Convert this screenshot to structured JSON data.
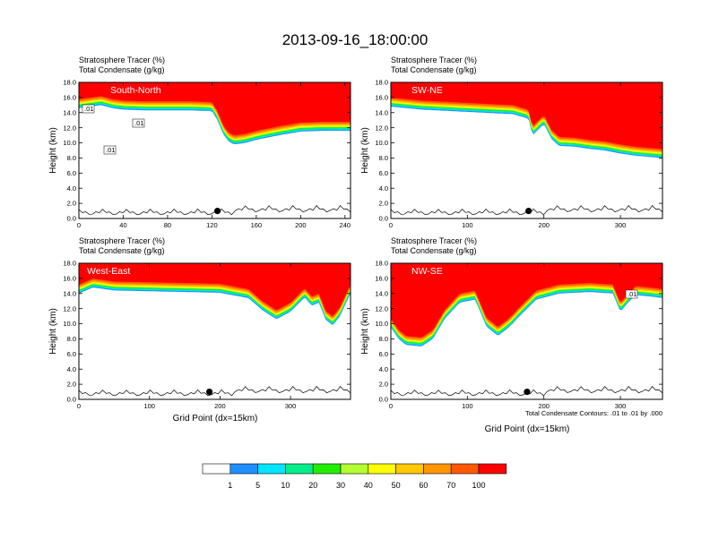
{
  "title": "2013-09-16_18:00:00",
  "subtitle_line1": "Stratosphere Tracer   (%)",
  "subtitle_line2": "Total Condensate   (g/kg)",
  "ylabel": "Height (km)",
  "xlabel": "Grid Point (dx=15km)",
  "contour_note": "Total Condensate Contours: .01 to .01 by .000",
  "colorbar": {
    "labels": [
      "1",
      "5",
      "10",
      "20",
      "30",
      "40",
      "50",
      "60",
      "70",
      "100"
    ],
    "colors": [
      "#ffffff",
      "#1e90ff",
      "#00e5ff",
      "#00ee8a",
      "#22ee00",
      "#b4ff32",
      "#ffff00",
      "#ffc800",
      "#ff9600",
      "#ff5a00",
      "#ff0000"
    ]
  },
  "chart_data": [
    {
      "type": "heatmap",
      "name": "South-North",
      "xlim": [
        0,
        245
      ],
      "ylim": [
        0,
        18
      ],
      "xticks": [
        "0",
        "40",
        "80",
        "120",
        "160",
        "200",
        "240"
      ],
      "yticks": [
        "0.0",
        "2.0",
        "4.0",
        "6.0",
        "8.0",
        "10.0",
        "12.0",
        "14.0",
        "16.0",
        "18.0"
      ],
      "contour_labels": [
        ".01",
        ".01",
        ".01"
      ],
      "tracer_bottom_km": {
        "x": [
          0,
          10,
          20,
          30,
          40,
          60,
          80,
          100,
          120,
          125,
          130,
          135,
          140,
          150,
          160,
          180,
          200,
          220,
          245
        ],
        "y": [
          14.6,
          14.8,
          15.0,
          14.6,
          14.4,
          14.3,
          14.3,
          14.3,
          14.2,
          13.0,
          11.2,
          10.2,
          9.8,
          10.0,
          10.4,
          11.0,
          11.5,
          11.6,
          11.6
        ]
      },
      "terrain_marker": {
        "x": 125,
        "y": 1.0
      }
    },
    {
      "type": "heatmap",
      "name": "SW-NE",
      "xlim": [
        0,
        355
      ],
      "ylim": [
        0,
        18
      ],
      "xticks": [
        "0",
        "100",
        "200",
        "300"
      ],
      "yticks": [
        "0.0",
        "2.0",
        "4.0",
        "6.0",
        "8.0",
        "10.0",
        "12.0",
        "14.0",
        "16.0",
        "18.0"
      ],
      "tracer_bottom_km": {
        "x": [
          0,
          40,
          80,
          120,
          160,
          180,
          185,
          200,
          210,
          220,
          240,
          260,
          280,
          300,
          320,
          355
        ],
        "y": [
          14.8,
          14.4,
          14.2,
          14.0,
          13.8,
          13.2,
          11.0,
          12.5,
          10.5,
          9.6,
          9.5,
          9.2,
          9.0,
          8.6,
          8.3,
          8.0
        ]
      },
      "terrain_marker": {
        "x": 180,
        "y": 1.0
      }
    },
    {
      "type": "heatmap",
      "name": "West-East",
      "xlim": [
        0,
        385
      ],
      "ylim": [
        0,
        18
      ],
      "xticks": [
        "0",
        "100",
        "200",
        "300"
      ],
      "yticks": [
        "0.0",
        "2.0",
        "4.0",
        "6.0",
        "8.0",
        "10.0",
        "12.0",
        "14.0",
        "16.0",
        "18.0"
      ],
      "tracer_bottom_km": {
        "x": [
          0,
          20,
          50,
          100,
          150,
          200,
          240,
          260,
          280,
          300,
          320,
          330,
          340,
          350,
          360,
          370,
          385
        ],
        "y": [
          14.0,
          14.8,
          14.4,
          14.3,
          14.2,
          14.1,
          13.4,
          11.8,
          10.6,
          11.6,
          13.5,
          12.4,
          12.8,
          10.5,
          9.8,
          11.0,
          14.0
        ]
      },
      "terrain_marker": {
        "x": 185,
        "y": 1.0
      }
    },
    {
      "type": "heatmap",
      "name": "NW-SE",
      "xlim": [
        0,
        355
      ],
      "ylim": [
        0,
        18
      ],
      "xticks": [
        "0",
        "100",
        "200",
        "300"
      ],
      "yticks": [
        "0.0",
        "2.0",
        "4.0",
        "6.0",
        "8.0",
        "10.0",
        "12.0",
        "14.0",
        "16.0",
        "18.0"
      ],
      "contour_labels": [
        ".01"
      ],
      "tracer_bottom_km": {
        "x": [
          0,
          10,
          20,
          40,
          55,
          70,
          90,
          110,
          125,
          140,
          155,
          170,
          190,
          220,
          260,
          290,
          300,
          310,
          320,
          340,
          355
        ],
        "y": [
          9.5,
          8.0,
          7.2,
          7.0,
          8.0,
          10.6,
          12.8,
          13.2,
          9.6,
          8.4,
          9.6,
          11.2,
          13.2,
          14.0,
          14.2,
          14.0,
          11.6,
          12.8,
          13.8,
          13.6,
          13.4
        ]
      },
      "terrain_marker": {
        "x": 178,
        "y": 1.0
      }
    }
  ]
}
